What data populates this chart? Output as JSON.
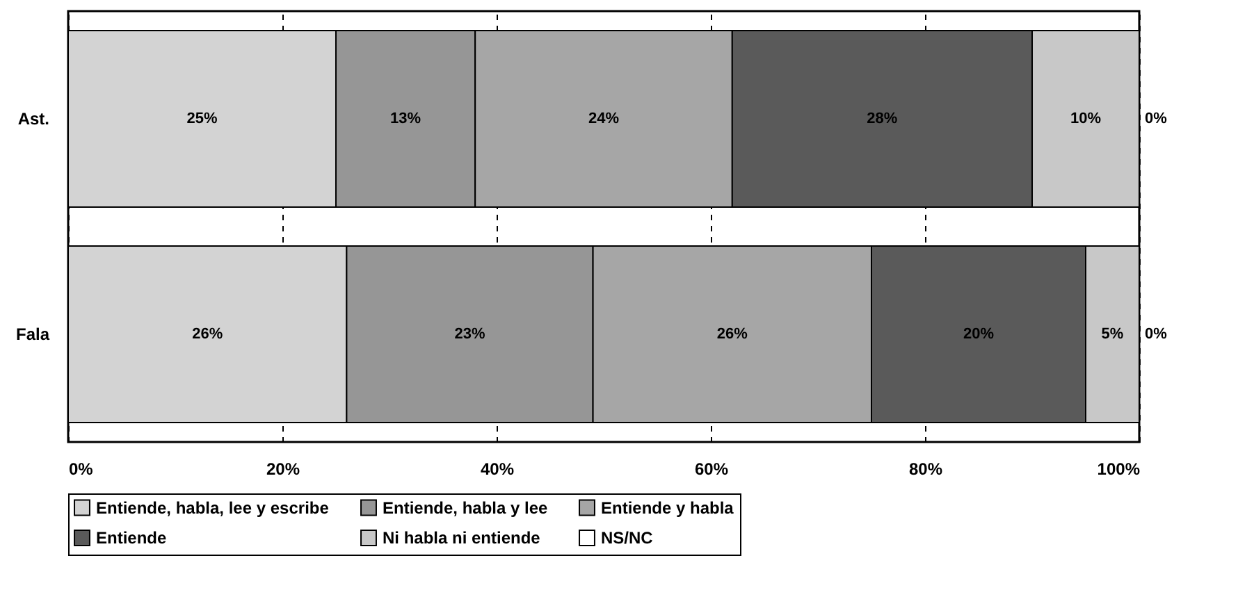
{
  "chart_data": {
    "type": "bar",
    "orientation": "horizontal",
    "stacked": true,
    "categories": [
      "Ast.",
      "Fala"
    ],
    "series": [
      {
        "name": "Entiende, habla, lee y escribe",
        "color": "#d3d3d3",
        "values": [
          25,
          26
        ],
        "value_labels": [
          "25%",
          "26%"
        ]
      },
      {
        "name": "Entiende, habla y lee",
        "color": "#969696",
        "values": [
          13,
          23
        ],
        "value_labels": [
          "13%",
          "23%"
        ]
      },
      {
        "name": "Entiende y habla",
        "color": "#a6a6a6",
        "values": [
          24,
          26
        ],
        "value_labels": [
          "24%",
          "26%"
        ]
      },
      {
        "name": "Entiende",
        "color": "#5a5a5a",
        "values": [
          28,
          20
        ],
        "value_labels": [
          "28%",
          "20%"
        ]
      },
      {
        "name": "Ni habla ni entiende",
        "color": "#c8c8c8",
        "values": [
          10,
          5
        ],
        "value_labels": [
          "10%",
          "5%"
        ]
      },
      {
        "name": "NS/NC",
        "color": "#ffffff",
        "values": [
          0,
          0
        ],
        "value_labels": [
          "0%",
          "0%"
        ]
      }
    ],
    "xlim": [
      0,
      100
    ],
    "xticks": [
      {
        "value": 0,
        "label": "0%"
      },
      {
        "value": 20,
        "label": "20%"
      },
      {
        "value": 40,
        "label": "40%"
      },
      {
        "value": 60,
        "label": "60%"
      },
      {
        "value": 80,
        "label": "80%"
      },
      {
        "value": 100,
        "label": "100%"
      }
    ],
    "grid": "x",
    "legend": "bottom"
  }
}
